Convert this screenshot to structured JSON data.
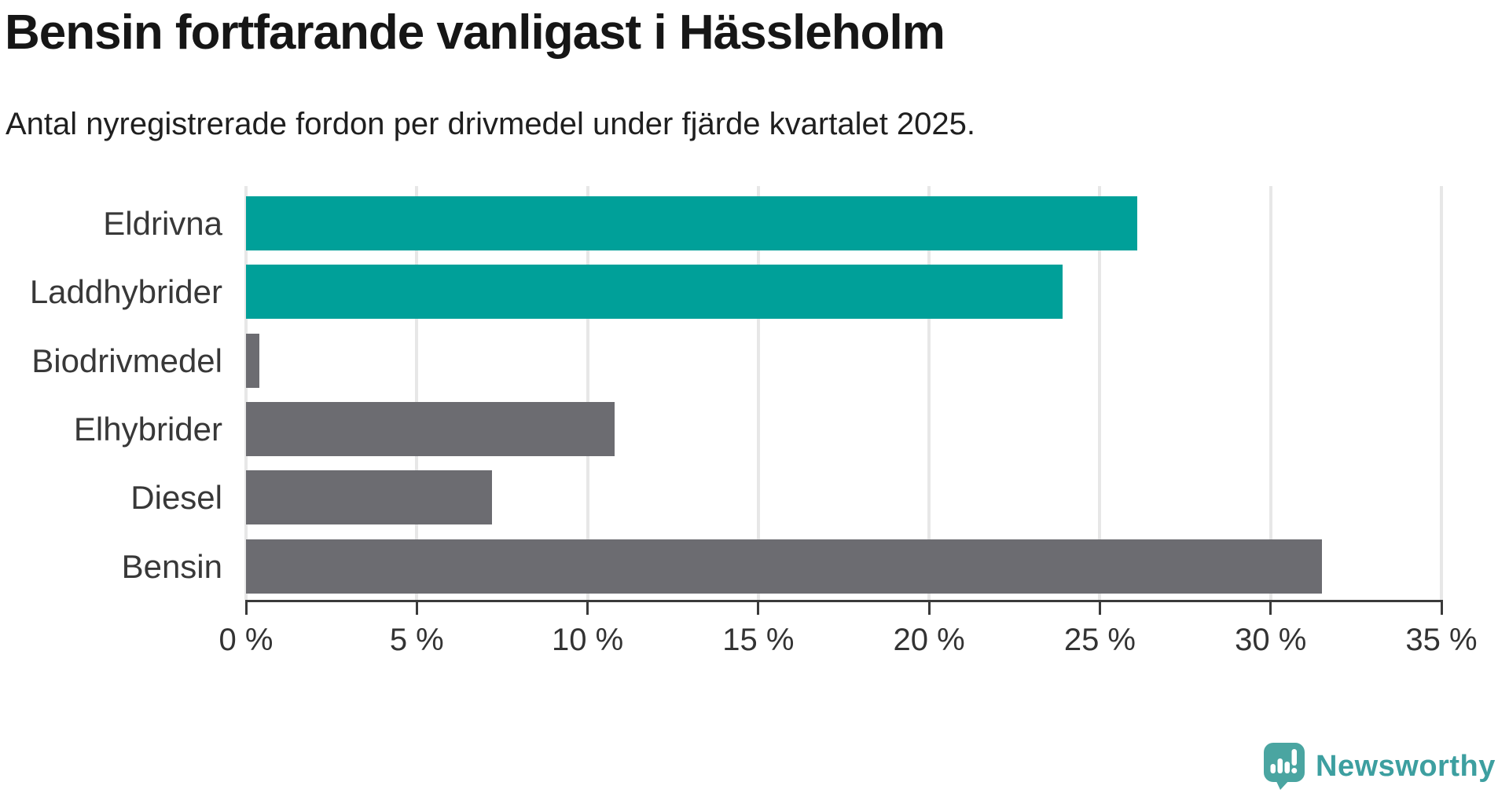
{
  "header": {
    "title": "Bensin fortfarande vanligast i Hässleholm",
    "subtitle": "Antal nyregistrerade fordon per drivmedel under fjärde kvartalet 2025."
  },
  "chart_data": {
    "type": "bar",
    "orientation": "horizontal",
    "title": "Bensin fortfarande vanligast i Hässleholm",
    "subtitle": "Antal nyregistrerade fordon per drivmedel under fjärde kvartalet 2025.",
    "categories": [
      "Eldrivna",
      "Laddhybrider",
      "Biodrivmedel",
      "Elhybrider",
      "Diesel",
      "Bensin"
    ],
    "values": [
      26.1,
      23.9,
      0.4,
      10.8,
      7.2,
      31.5
    ],
    "unit": "%",
    "bar_colors": [
      "teal",
      "teal",
      "gray",
      "gray",
      "gray",
      "gray"
    ],
    "palette": {
      "teal": "#00a099",
      "gray": "#6c6c71"
    },
    "xlim": [
      0,
      35
    ],
    "x_ticks": [
      0,
      5,
      10,
      15,
      20,
      25,
      30,
      35
    ],
    "x_tick_labels": [
      "0 %",
      "5 %",
      "10 %",
      "15 %",
      "20 %",
      "25 %",
      "30 %",
      "35 %"
    ],
    "grid": "vertical",
    "legend": "none",
    "xlabel": "",
    "ylabel": ""
  },
  "branding": {
    "logo_text": "Newsworthy",
    "text_color": "#3d9fa0",
    "icon_color": "#4aa5a1"
  }
}
